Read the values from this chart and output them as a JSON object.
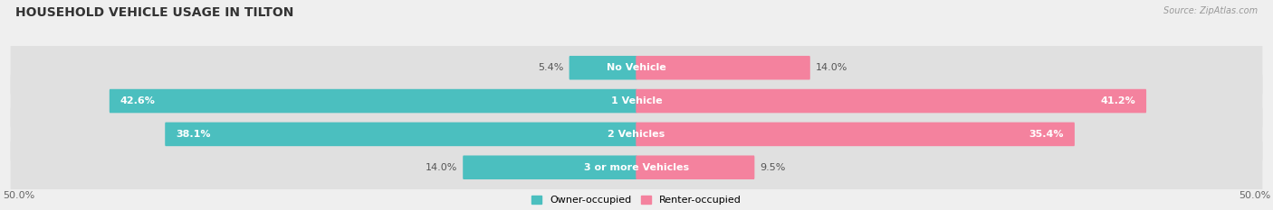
{
  "title": "HOUSEHOLD VEHICLE USAGE IN TILTON",
  "source": "Source: ZipAtlas.com",
  "categories": [
    "No Vehicle",
    "1 Vehicle",
    "2 Vehicles",
    "3 or more Vehicles"
  ],
  "owner_values": [
    5.4,
    42.6,
    38.1,
    14.0
  ],
  "renter_values": [
    14.0,
    41.2,
    35.4,
    9.5
  ],
  "owner_color": "#4bbfbf",
  "renter_color": "#f4829e",
  "owner_label": "Owner-occupied",
  "renter_label": "Renter-occupied",
  "xlim": 50.0,
  "bg_color": "#efefef",
  "bar_bg_color": "#e0e0e0",
  "row_bg_colors": [
    "#e8e8e8",
    "#e2e2e2"
  ],
  "title_fontsize": 10,
  "source_fontsize": 7,
  "axis_label_fontsize": 8,
  "bar_label_fontsize": 8,
  "cat_label_fontsize": 8
}
